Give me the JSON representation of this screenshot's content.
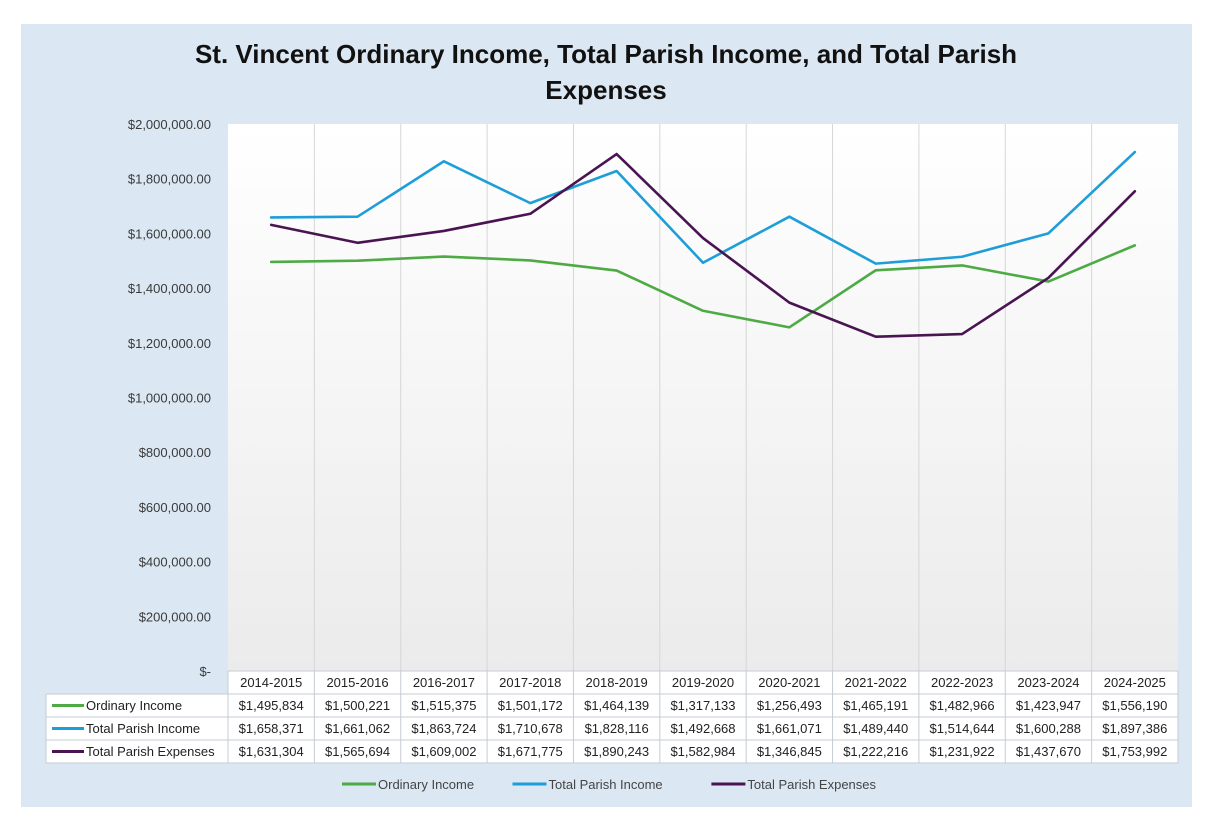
{
  "chart_data": {
    "type": "line",
    "title": "St. Vincent Ordinary Income, Total Parish Income, and Total Parish Expenses",
    "title_lines": [
      "St. Vincent Ordinary Income, Total Parish Income, and Total Parish",
      "Expenses"
    ],
    "ylim": [
      0,
      2000000
    ],
    "yticks": [
      {
        "value": 2000000,
        "label": "$2,000,000.00"
      },
      {
        "value": 1800000,
        "label": "$1,800,000.00"
      },
      {
        "value": 1600000,
        "label": "$1,600,000.00"
      },
      {
        "value": 1400000,
        "label": "$1,400,000.00"
      },
      {
        "value": 1200000,
        "label": "$1,200,000.00"
      },
      {
        "value": 1000000,
        "label": "$1,000,000.00"
      },
      {
        "value": 800000,
        "label": "$800,000.00"
      },
      {
        "value": 600000,
        "label": "$600,000.00"
      },
      {
        "value": 400000,
        "label": "$400,000.00"
      },
      {
        "value": 200000,
        "label": "$200,000.00"
      },
      {
        "value": 0,
        "label": "$-"
      }
    ],
    "categories": [
      "2014-2015",
      "2015-2016",
      "2016-2017",
      "2017-2018",
      "2018-2019",
      "2019-2020",
      "2020-2021",
      "2021-2022",
      "2022-2023",
      "2023-2024",
      "2024-2025"
    ],
    "series": [
      {
        "name": "Ordinary Income",
        "color": "#4eaa44",
        "values": [
          1495834,
          1500221,
          1515375,
          1501172,
          1464139,
          1317133,
          1256493,
          1465191,
          1482966,
          1423947,
          1556190
        ],
        "labels": [
          "$1,495,834",
          "$1,500,221",
          "$1,515,375",
          "$1,501,172",
          "$1,464,139",
          "$1,317,133",
          "$1,256,493",
          "$1,465,191",
          "$1,482,966",
          "$1,423,947",
          "$1,556,190"
        ]
      },
      {
        "name": "Total Parish Income",
        "color": "#1e9ed8",
        "values": [
          1658371,
          1661062,
          1863724,
          1710678,
          1828116,
          1492668,
          1661071,
          1489440,
          1514644,
          1600288,
          1897386
        ],
        "labels": [
          "$1,658,371",
          "$1,661,062",
          "$1,863,724",
          "$1,710,678",
          "$1,828,116",
          "$1,492,668",
          "$1,661,071",
          "$1,489,440",
          "$1,514,644",
          "$1,600,288",
          "$1,897,386"
        ]
      },
      {
        "name": "Total Parish Expenses",
        "color": "#4a1452",
        "values": [
          1631304,
          1565694,
          1609002,
          1671775,
          1890243,
          1582984,
          1346845,
          1222216,
          1231922,
          1437670,
          1753992
        ],
        "labels": [
          "$1,631,304",
          "$1,565,694",
          "$1,609,002",
          "$1,671,775",
          "$1,890,243",
          "$1,582,984",
          "$1,346,845",
          "$1,222,216",
          "$1,231,922",
          "$1,437,670",
          "$1,753,992"
        ]
      }
    ],
    "legend": [
      "Ordinary Income",
      "Total Parish Income",
      "Total Parish Expenses"
    ],
    "legend_position": "bottom",
    "data_table": true,
    "grid": "vertical"
  }
}
